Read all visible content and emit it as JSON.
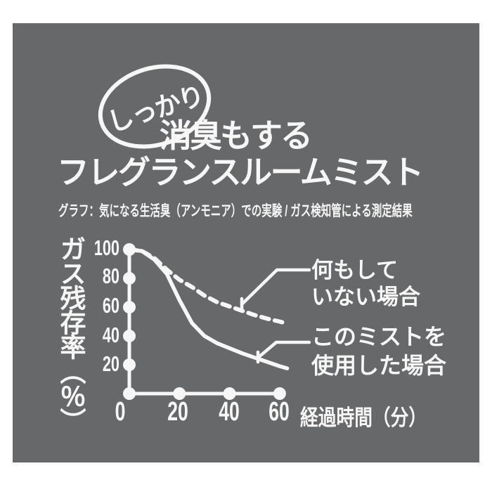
{
  "colors": {
    "page_bg": "#ffffff",
    "panel_bg": "#67686a",
    "ink": "#f7f7f7"
  },
  "header": {
    "badge": "しっかり",
    "title_line1": "消臭もする",
    "title_line2": "フレグランスルームミスト",
    "subtitle": "グラフ：気になる生活臭（アンモニア）での実験 / ガス検知管による測定結果"
  },
  "chart_data": {
    "type": "line",
    "title": "",
    "xlabel": "経過時間（分）",
    "ylabel": "ガス残存率（％）",
    "x_ticks": [
      "0",
      "20",
      "40",
      "60"
    ],
    "y_ticks": [
      "100",
      "80",
      "60",
      "40",
      "20"
    ],
    "xlim": [
      0,
      63
    ],
    "ylim": [
      0,
      100
    ],
    "grid": false,
    "legend_position": "right-side annotations with leader lines",
    "samples_x": [
      0,
      5,
      10,
      15,
      20,
      25,
      30,
      35,
      40,
      45,
      50,
      55,
      60,
      63
    ],
    "series": [
      {
        "name": "何もしていない場合",
        "style": "dashed",
        "values": [
          100,
          99,
          94,
          86,
          79,
          74,
          68,
          63.5,
          60.5,
          57.5,
          54.5,
          52,
          50,
          48.5
        ]
      },
      {
        "name": "このミストを使用した場合",
        "style": "solid",
        "values": [
          100,
          99,
          93,
          83,
          65,
          49,
          40,
          35,
          31.5,
          28,
          25,
          22,
          19,
          17.5
        ]
      }
    ]
  },
  "chart": {
    "annotations": {
      "untreated_line1": "何もして",
      "untreated_line2": "いない場合",
      "mist_line1": "このミストを",
      "mist_line2": "使用した場合"
    }
  }
}
